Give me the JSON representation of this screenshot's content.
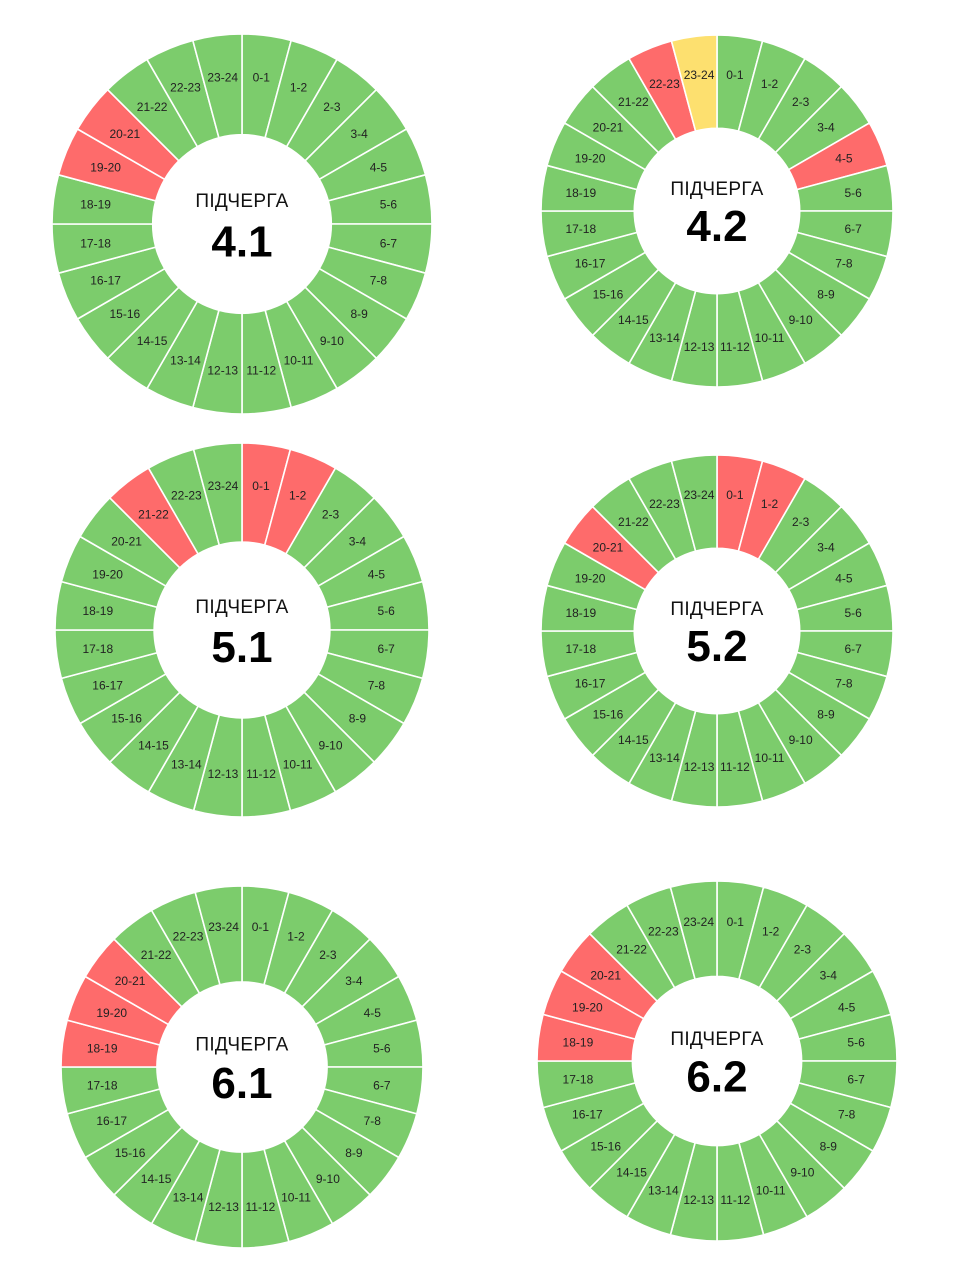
{
  "colors": {
    "on": "#7ccc6c",
    "off": "#fe6b6b",
    "possible": "#fde06f",
    "separator": "#ffffff"
  },
  "chart_data": [
    {
      "type": "pie",
      "caption": "ПІДЧЕРГА",
      "queue": "4.1",
      "categories": [
        "0-1",
        "1-2",
        "2-3",
        "3-4",
        "4-5",
        "5-6",
        "6-7",
        "7-8",
        "8-9",
        "9-10",
        "10-11",
        "11-12",
        "12-13",
        "13-14",
        "14-15",
        "15-16",
        "16-17",
        "17-18",
        "18-19",
        "19-20",
        "20-21",
        "21-22",
        "22-23",
        "23-24"
      ],
      "status": [
        "on",
        "on",
        "on",
        "on",
        "on",
        "on",
        "on",
        "on",
        "on",
        "on",
        "on",
        "on",
        "on",
        "on",
        "on",
        "on",
        "on",
        "on",
        "on",
        "off",
        "off",
        "on",
        "on",
        "on"
      ]
    },
    {
      "type": "pie",
      "caption": "ПІДЧЕРГА",
      "queue": "4.2",
      "categories": [
        "0-1",
        "1-2",
        "2-3",
        "3-4",
        "4-5",
        "5-6",
        "6-7",
        "7-8",
        "8-9",
        "9-10",
        "10-11",
        "11-12",
        "12-13",
        "13-14",
        "14-15",
        "15-16",
        "16-17",
        "17-18",
        "18-19",
        "19-20",
        "20-21",
        "21-22",
        "22-23",
        "23-24"
      ],
      "status": [
        "on",
        "on",
        "on",
        "on",
        "off",
        "on",
        "on",
        "on",
        "on",
        "on",
        "on",
        "on",
        "on",
        "on",
        "on",
        "on",
        "on",
        "on",
        "on",
        "on",
        "on",
        "on",
        "off",
        "possible"
      ]
    },
    {
      "type": "pie",
      "caption": "ПІДЧЕРГА",
      "queue": "5.1",
      "categories": [
        "0-1",
        "1-2",
        "2-3",
        "3-4",
        "4-5",
        "5-6",
        "6-7",
        "7-8",
        "8-9",
        "9-10",
        "10-11",
        "11-12",
        "12-13",
        "13-14",
        "14-15",
        "15-16",
        "16-17",
        "17-18",
        "18-19",
        "19-20",
        "20-21",
        "21-22",
        "22-23",
        "23-24"
      ],
      "status": [
        "off",
        "off",
        "on",
        "on",
        "on",
        "on",
        "on",
        "on",
        "on",
        "on",
        "on",
        "on",
        "on",
        "on",
        "on",
        "on",
        "on",
        "on",
        "on",
        "on",
        "on",
        "off",
        "on",
        "on"
      ]
    },
    {
      "type": "pie",
      "caption": "ПІДЧЕРГА",
      "queue": "5.2",
      "categories": [
        "0-1",
        "1-2",
        "2-3",
        "3-4",
        "4-5",
        "5-6",
        "6-7",
        "7-8",
        "8-9",
        "9-10",
        "10-11",
        "11-12",
        "12-13",
        "13-14",
        "14-15",
        "15-16",
        "16-17",
        "17-18",
        "18-19",
        "19-20",
        "20-21",
        "21-22",
        "22-23",
        "23-24"
      ],
      "status": [
        "off",
        "off",
        "on",
        "on",
        "on",
        "on",
        "on",
        "on",
        "on",
        "on",
        "on",
        "on",
        "on",
        "on",
        "on",
        "on",
        "on",
        "on",
        "on",
        "on",
        "off",
        "on",
        "on",
        "on"
      ]
    },
    {
      "type": "pie",
      "caption": "ПІДЧЕРГА",
      "queue": "6.1",
      "categories": [
        "0-1",
        "1-2",
        "2-3",
        "3-4",
        "4-5",
        "5-6",
        "6-7",
        "7-8",
        "8-9",
        "9-10",
        "10-11",
        "11-12",
        "12-13",
        "13-14",
        "14-15",
        "15-16",
        "16-17",
        "17-18",
        "18-19",
        "19-20",
        "20-21",
        "21-22",
        "22-23",
        "23-24"
      ],
      "status": [
        "on",
        "on",
        "on",
        "on",
        "on",
        "on",
        "on",
        "on",
        "on",
        "on",
        "on",
        "on",
        "on",
        "on",
        "on",
        "on",
        "on",
        "on",
        "off",
        "off",
        "off",
        "on",
        "on",
        "on"
      ]
    },
    {
      "type": "pie",
      "caption": "ПІДЧЕРГА",
      "queue": "6.2",
      "categories": [
        "0-1",
        "1-2",
        "2-3",
        "3-4",
        "4-5",
        "5-6",
        "6-7",
        "7-8",
        "8-9",
        "9-10",
        "10-11",
        "11-12",
        "12-13",
        "13-14",
        "14-15",
        "15-16",
        "16-17",
        "17-18",
        "18-19",
        "19-20",
        "20-21",
        "21-22",
        "22-23",
        "23-24"
      ],
      "status": [
        "on",
        "on",
        "on",
        "on",
        "on",
        "on",
        "on",
        "on",
        "on",
        "on",
        "on",
        "on",
        "on",
        "on",
        "on",
        "on",
        "on",
        "on",
        "off",
        "off",
        "off",
        "on",
        "on",
        "on"
      ]
    }
  ]
}
